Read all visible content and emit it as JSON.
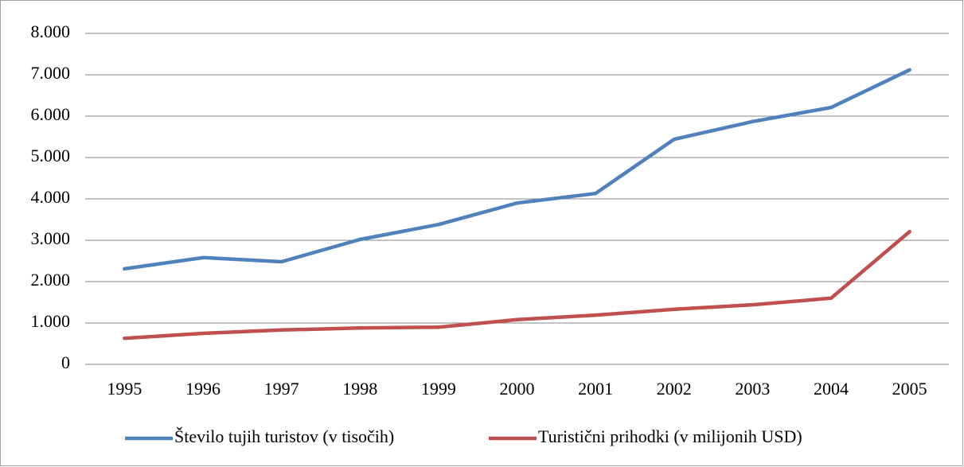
{
  "chart_data": {
    "type": "line",
    "categories": [
      "1995",
      "1996",
      "1997",
      "1998",
      "1999",
      "2000",
      "2001",
      "2002",
      "2003",
      "2004",
      "2005"
    ],
    "series": [
      {
        "name": "Število tujih turistov (v tisočih)",
        "color": "#4f81bd",
        "values": [
          2310,
          2580,
          2480,
          3020,
          3380,
          3900,
          4130,
          5440,
          5870,
          6210,
          7120
        ]
      },
      {
        "name": "Turistični prihodki (v milijonih USD)",
        "color": "#c0504d",
        "values": [
          630,
          750,
          830,
          880,
          900,
          1080,
          1190,
          1330,
          1440,
          1600,
          3210
        ]
      }
    ],
    "ylim": [
      0,
      8000
    ],
    "yticks": [
      0,
      {
        "value": 1000,
        "label": "1.000"
      },
      {
        "value": 2000,
        "label": "2.000"
      },
      {
        "value": 3000,
        "label": "3.000"
      },
      {
        "value": 4000,
        "label": "4.000"
      },
      {
        "value": 5000,
        "label": "5.000"
      },
      {
        "value": 6000,
        "label": "6.000"
      },
      {
        "value": 7000,
        "label": "7.000"
      },
      {
        "value": 8000,
        "label": "8.000"
      }
    ],
    "grid": true,
    "legend": "bottom"
  }
}
